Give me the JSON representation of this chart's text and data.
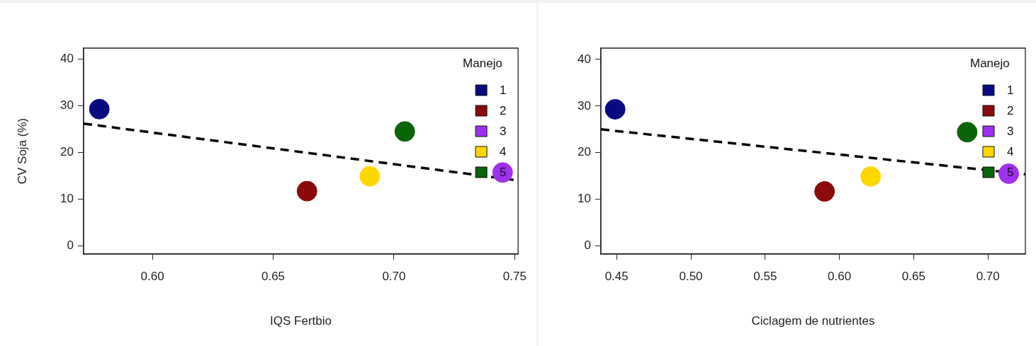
{
  "chart_data": [
    {
      "type": "scatter",
      "xlabel": "IQS Fertbio",
      "ylabel": "CV Soja (%)",
      "legend_title": "Manejo",
      "legend": "top right",
      "marker": "circle",
      "xlim": [
        0.5715,
        0.7514
      ],
      "ylim": [
        -1.8,
        42.4
      ],
      "xticks": [
        {
          "value": 0.6,
          "label": "0.60"
        },
        0.65,
        {
          "value": 0.7,
          "label": "0.70"
        },
        0.75
      ],
      "yticks": [
        0,
        10,
        20,
        30,
        40
      ],
      "series": [
        {
          "name": "1",
          "color": "#0a0a80",
          "x": [
            0.578
          ],
          "values": [
            29.3
          ]
        },
        {
          "name": "2",
          "color": "#8b0a0a",
          "x": [
            0.664
          ],
          "values": [
            11.7
          ]
        },
        {
          "name": "3",
          "color": "#a030ef",
          "x": [
            0.745
          ],
          "values": [
            15.7
          ]
        },
        {
          "name": "4",
          "color": "#ffd700",
          "x": [
            0.69
          ],
          "values": [
            14.9
          ]
        },
        {
          "name": "5",
          "color": "#0a640a",
          "x": [
            0.7045
          ],
          "values": [
            24.5
          ]
        },
        {
          "type": "line",
          "color": "#000000",
          "line_style": "dashed",
          "marker": "none",
          "x": [
            0.5715,
            0.7514
          ],
          "values": [
            26.2,
            14.0
          ]
        }
      ]
    },
    {
      "type": "scatter",
      "xlabel": "Ciclagem de nutrientes",
      "legend_title": "Manejo",
      "legend": "top right",
      "marker": "circle",
      "xlim": [
        0.4394,
        0.7252
      ],
      "ylim": [
        -1.7,
        42.4
      ],
      "xticks": [
        0.45,
        {
          "value": 0.5,
          "label": "0.50"
        },
        0.55,
        {
          "value": 0.6,
          "label": "0.60"
        },
        0.65,
        {
          "value": 0.7,
          "label": "0.70"
        }
      ],
      "yticks": [
        0,
        10,
        20,
        30,
        40
      ],
      "series": [
        {
          "name": "1",
          "color": "#0a0a80",
          "x": [
            0.449
          ],
          "values": [
            29.3
          ]
        },
        {
          "name": "2",
          "color": "#8b0a0a",
          "x": [
            0.59
          ],
          "values": [
            11.7
          ]
        },
        {
          "name": "3",
          "color": "#a030ef",
          "x": [
            0.714
          ],
          "values": [
            15.5
          ]
        },
        {
          "name": "4",
          "color": "#ffd700",
          "x": [
            0.621
          ],
          "values": [
            14.9
          ]
        },
        {
          "name": "5",
          "color": "#0a640a",
          "x": [
            0.686
          ],
          "values": [
            24.4
          ]
        },
        {
          "type": "line",
          "color": "#000000",
          "line_style": "dashed",
          "marker": "none",
          "x": [
            0.4394,
            0.7252
          ],
          "values": [
            25.0,
            15.4
          ]
        }
      ]
    }
  ]
}
